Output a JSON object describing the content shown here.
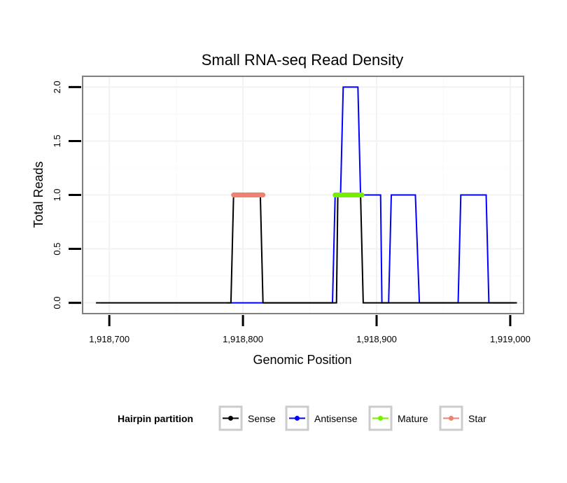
{
  "chart_data": {
    "type": "line",
    "title": "Small RNA-seq Read Density",
    "xlabel": "Genomic Position",
    "ylabel": "Total Reads",
    "xlim": [
      1918680,
      1919010
    ],
    "ylim": [
      -0.1,
      2.1
    ],
    "x_ticks": [
      1918700,
      1918800,
      1918900,
      1919000
    ],
    "x_tick_labels": [
      "1,918,700",
      "1,918,800",
      "1,918,900",
      "1,919,000"
    ],
    "y_ticks": [
      0,
      0.5,
      1,
      1.5,
      2
    ],
    "y_tick_labels": [
      "0.0",
      "0.5",
      "1.0",
      "1.5",
      "2.0"
    ],
    "grid": true,
    "legend": {
      "title": "Hairpin partition",
      "position": "bottom",
      "entries": [
        "Sense",
        "Antisense",
        "Mature",
        "Star"
      ]
    },
    "series": [
      {
        "name": "Antisense",
        "color": "#0000FF",
        "style": "line",
        "x": [
          1918788,
          1918791,
          1918814,
          1918867,
          1918869,
          1918873,
          1918875,
          1918886,
          1918888,
          1918897,
          1918903,
          1918904,
          1918909,
          1918911,
          1918929,
          1918932,
          1918961,
          1918963,
          1918982,
          1918984,
          1919003
        ],
        "y": [
          0,
          0,
          0,
          0,
          1,
          1,
          2,
          2,
          1,
          1,
          1,
          0,
          0,
          1,
          1,
          0,
          0,
          1,
          1,
          0,
          0
        ]
      },
      {
        "name": "Sense",
        "color": "#000000",
        "style": "line",
        "x": [
          1918690,
          1918791,
          1918793,
          1918813,
          1918815,
          1918870,
          1918871,
          1918888,
          1918890,
          1919005
        ],
        "y": [
          0,
          0,
          1,
          1,
          0,
          0,
          1,
          1,
          0,
          0
        ]
      },
      {
        "name": "Star",
        "color": "#F08070",
        "style": "thick",
        "x": [
          1918793,
          1918815
        ],
        "y": [
          1,
          1
        ]
      },
      {
        "name": "Mature",
        "color": "#77EE00",
        "style": "thick",
        "x": [
          1918869,
          1918889
        ],
        "y": [
          1,
          1
        ]
      }
    ]
  }
}
